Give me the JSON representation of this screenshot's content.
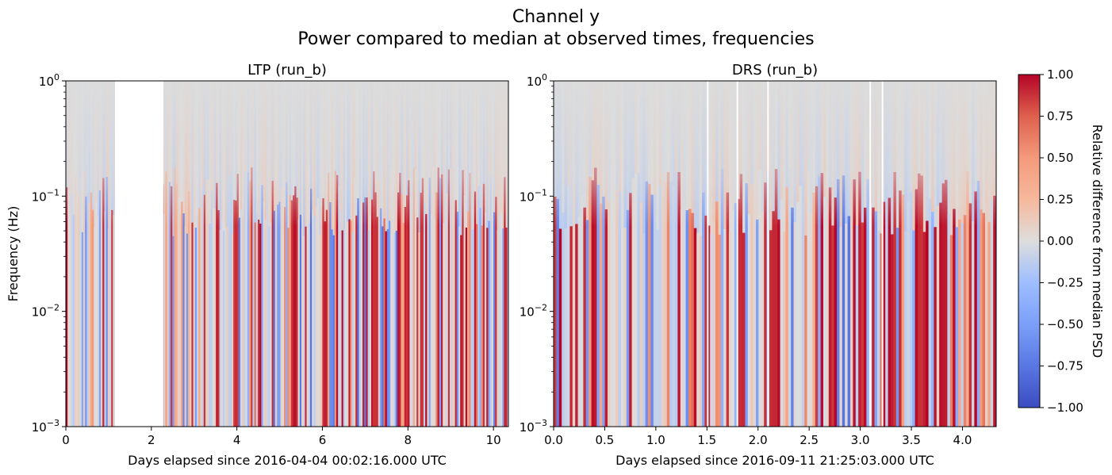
{
  "figure": {
    "title_line1": "Channel y",
    "title_line2": "Power compared to median at observed times, frequencies"
  },
  "chart_data": [
    {
      "type": "heatmap",
      "title": "LTP (run_b)",
      "xlabel": "Days elapsed since 2016-04-04 00:02:16.000 UTC",
      "ylabel": "Frequency (Hz)",
      "xlim": [
        0,
        10.35
      ],
      "ylim": [
        0.001,
        1
      ],
      "yscale": "log",
      "xticks": [
        0,
        2,
        4,
        6,
        8,
        10
      ],
      "xtick_labels": [
        "0",
        "2",
        "4",
        "6",
        "8",
        "10"
      ],
      "yticks": [
        0.001,
        0.01,
        0.1,
        1
      ],
      "ytick_labels": [
        "10",
        "10",
        "10",
        "10"
      ],
      "ytick_exponents": [
        "−3",
        "−2",
        "−1",
        "0"
      ],
      "data_gaps": [
        [
          1.15,
          2.28
        ]
      ]
    },
    {
      "type": "heatmap",
      "title": "DRS (run_b)",
      "xlabel": "Days elapsed since 2016-09-11 21:25:03.000 UTC",
      "ylabel": "",
      "xlim": [
        0,
        4.33
      ],
      "ylim": [
        0.001,
        1
      ],
      "yscale": "log",
      "xticks": [
        0.0,
        0.5,
        1.0,
        1.5,
        2.0,
        2.5,
        3.0,
        3.5,
        4.0
      ],
      "xtick_labels": [
        "0.0",
        "0.5",
        "1.0",
        "1.5",
        "2.0",
        "2.5",
        "3.0",
        "3.5",
        "4.0"
      ],
      "yticks": [
        0.001,
        0.01,
        0.1,
        1
      ],
      "ytick_labels": [
        "10",
        "10",
        "10",
        "10"
      ],
      "ytick_exponents": [
        "−3",
        "−2",
        "−1",
        "0"
      ],
      "data_gaps": [
        [
          1.5,
          1.51
        ],
        [
          1.79,
          1.8
        ],
        [
          2.09,
          2.1
        ],
        [
          3.09,
          3.1
        ],
        [
          3.21,
          3.22
        ]
      ]
    }
  ],
  "colorbar": {
    "label": "Relative difference from median PSD",
    "colormap": "coolwarm",
    "min": -1.0,
    "max": 1.0,
    "ticks": [
      1.0,
      0.75,
      0.5,
      0.25,
      0.0,
      -0.25,
      -0.5,
      -0.75,
      -1.0
    ],
    "tick_labels": [
      "1.00",
      "0.75",
      "0.50",
      "0.25",
      "0.00",
      "−0.25",
      "−0.50",
      "−0.75",
      "−1.00"
    ]
  }
}
